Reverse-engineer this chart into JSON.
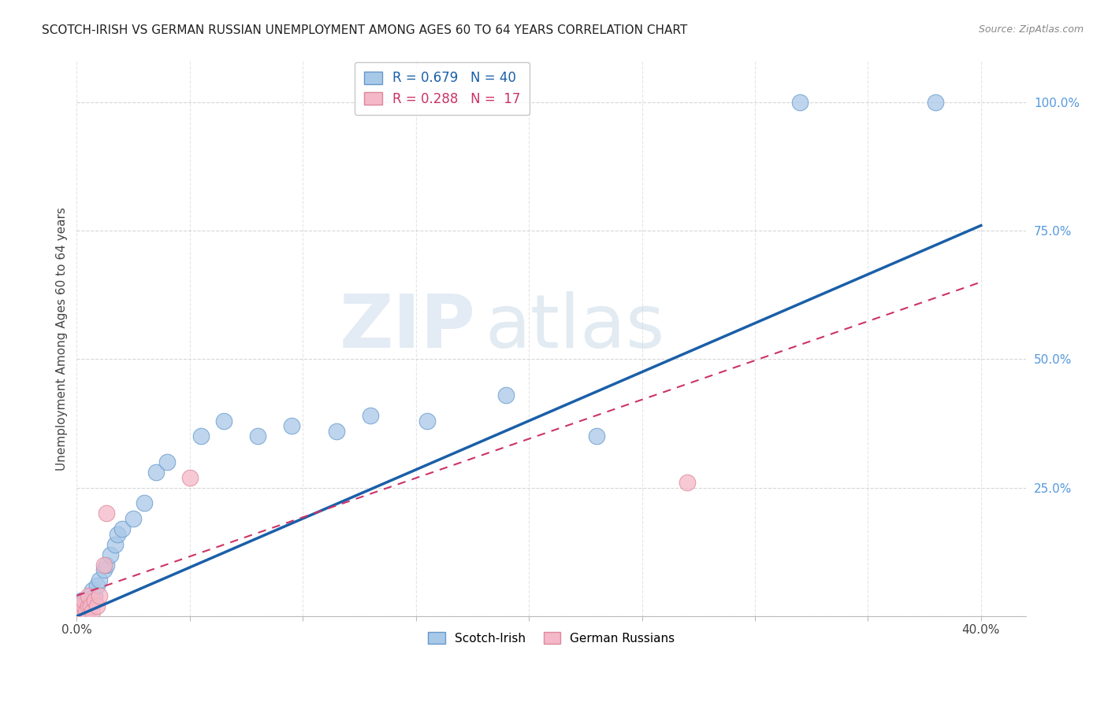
{
  "title": "SCOTCH-IRISH VS GERMAN RUSSIAN UNEMPLOYMENT AMONG AGES 60 TO 64 YEARS CORRELATION CHART",
  "source": "Source: ZipAtlas.com",
  "ylabel": "Unemployment Among Ages 60 to 64 years",
  "xlim": [
    0.0,
    0.42
  ],
  "ylim": [
    0.0,
    1.08
  ],
  "scotch_irish_x": [
    0.001,
    0.001,
    0.002,
    0.002,
    0.002,
    0.003,
    0.003,
    0.003,
    0.004,
    0.004,
    0.005,
    0.005,
    0.005,
    0.006,
    0.007,
    0.007,
    0.008,
    0.009,
    0.01,
    0.012,
    0.013,
    0.015,
    0.017,
    0.018,
    0.02,
    0.025,
    0.03,
    0.035,
    0.04,
    0.055,
    0.065,
    0.08,
    0.095,
    0.115,
    0.13,
    0.155,
    0.19,
    0.23,
    0.32,
    0.38
  ],
  "scotch_irish_y": [
    0.01,
    0.02,
    0.01,
    0.02,
    0.03,
    0.01,
    0.02,
    0.03,
    0.02,
    0.03,
    0.01,
    0.02,
    0.03,
    0.04,
    0.03,
    0.05,
    0.04,
    0.06,
    0.07,
    0.09,
    0.1,
    0.12,
    0.14,
    0.16,
    0.17,
    0.19,
    0.22,
    0.28,
    0.3,
    0.35,
    0.38,
    0.35,
    0.37,
    0.36,
    0.39,
    0.38,
    0.43,
    0.35,
    1.0,
    1.0
  ],
  "german_russian_x": [
    0.001,
    0.001,
    0.002,
    0.003,
    0.003,
    0.004,
    0.005,
    0.005,
    0.006,
    0.007,
    0.008,
    0.009,
    0.01,
    0.012,
    0.013,
    0.05,
    0.27
  ],
  "german_russian_y": [
    0.01,
    0.02,
    0.01,
    0.02,
    0.03,
    0.01,
    0.02,
    0.04,
    0.02,
    0.01,
    0.03,
    0.02,
    0.04,
    0.1,
    0.2,
    0.27,
    0.26
  ],
  "scotch_irish_color": "#a8c8e8",
  "scotch_irish_edge_color": "#6699cc",
  "scotch_irish_line_color": "#1a5fa8",
  "german_russian_color": "#f4b8c8",
  "german_russian_edge_color": "#dd8899",
  "german_russian_line_color": "#cc3366",
  "r_scotch": 0.679,
  "n_scotch": 40,
  "r_german": 0.288,
  "n_german": 17,
  "watermark_zip": "ZIP",
  "watermark_atlas": "atlas",
  "legend_labels": [
    "Scotch-Irish",
    "German Russians"
  ],
  "si_line_x0": 0.0,
  "si_line_y0": 0.0,
  "si_line_x1": 0.4,
  "si_line_y1": 0.76,
  "gr_line_x0": 0.0,
  "gr_line_y0": 0.04,
  "gr_line_x1": 0.4,
  "gr_line_y1": 0.65
}
